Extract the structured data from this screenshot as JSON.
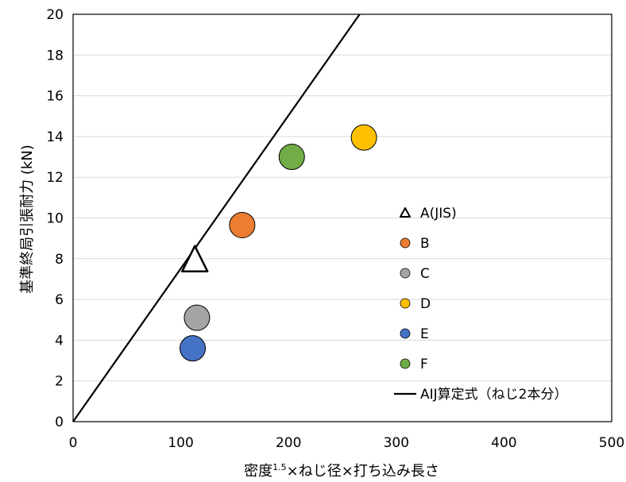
{
  "chart_data": {
    "type": "scatter",
    "title": "",
    "xlabel_main": "密度",
    "xlabel_sup": "1.5",
    "xlabel_rest": "×ねじ径×打ち込み長さ",
    "ylabel": "基準終局引張耐力 (kN)",
    "xlim": [
      0,
      500
    ],
    "ylim": [
      0,
      20
    ],
    "xticks": [
      "0",
      "100",
      "200",
      "300",
      "400",
      "500"
    ],
    "yticks": [
      "0",
      "2",
      "4",
      "6",
      "8",
      "10",
      "12",
      "14",
      "16",
      "18",
      "20"
    ],
    "grid": "horizontal",
    "legend_position": "right",
    "series": [
      {
        "name": "A(JIS)",
        "marker": "triangle",
        "color": "#ffffff",
        "x": [
          113
        ],
        "y": [
          8.0
        ]
      },
      {
        "name": "B",
        "marker": "circle",
        "color": "#ED7D31",
        "x": [
          157
        ],
        "y": [
          9.65
        ]
      },
      {
        "name": "C",
        "marker": "circle",
        "color": "#A5A5A5",
        "x": [
          115
        ],
        "y": [
          5.1
        ]
      },
      {
        "name": "D",
        "marker": "circle",
        "color": "#FFC000",
        "x": [
          270
        ],
        "y": [
          13.95
        ]
      },
      {
        "name": "E",
        "marker": "circle",
        "color": "#4472C4",
        "x": [
          111
        ],
        "y": [
          3.6
        ]
      },
      {
        "name": "F",
        "marker": "circle",
        "color": "#70AD47",
        "x": [
          203
        ],
        "y": [
          13.0
        ]
      }
    ],
    "reference_line": {
      "name": "AIJ算定式（ねじ2本分）",
      "x": [
        0,
        266
      ],
      "y": [
        0,
        20
      ]
    }
  }
}
